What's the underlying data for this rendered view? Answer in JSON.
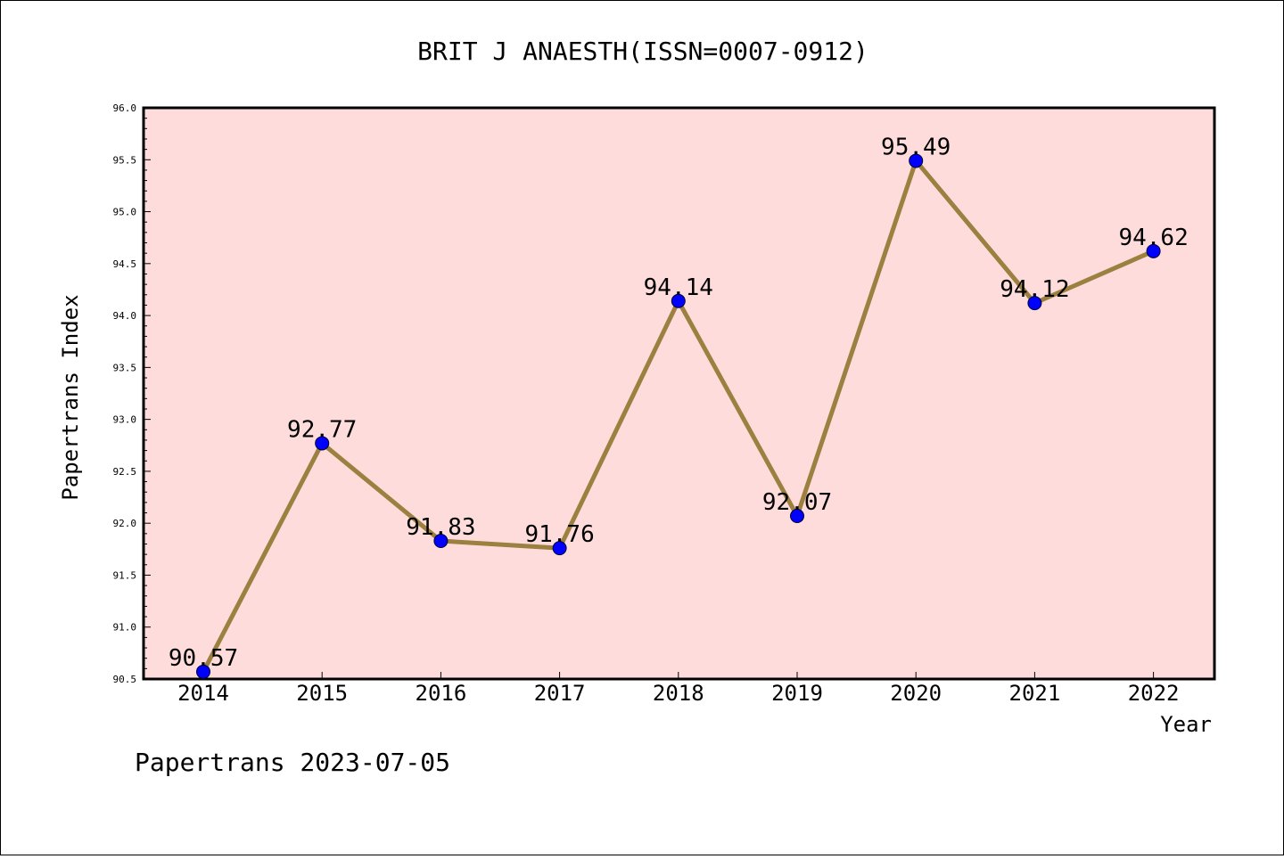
{
  "chart_data": {
    "type": "line",
    "title": "BRIT J ANAESTH(ISSN=0007-0912)",
    "xlabel": "Year",
    "ylabel": "Papertrans Index",
    "ylim": [
      90.5,
      96.0
    ],
    "ytick_step": 0.5,
    "yticks": [
      "90.5",
      "91.0",
      "91.5",
      "92.0",
      "92.5",
      "93.0",
      "93.5",
      "94.0",
      "94.5",
      "95.0",
      "95.5",
      "96.0"
    ],
    "categories": [
      "2014",
      "2015",
      "2016",
      "2017",
      "2018",
      "2019",
      "2020",
      "2021",
      "2022"
    ],
    "values": [
      90.57,
      92.77,
      91.83,
      91.76,
      94.14,
      92.07,
      95.49,
      94.12,
      94.62
    ],
    "data_labels": [
      "90.57",
      "92.77",
      "91.83",
      "91.76",
      "94.14",
      "92.07",
      "95.49",
      "94.12",
      "94.62"
    ],
    "grid": false,
    "colors": {
      "plot_background": "#ffdcdc",
      "line": "#9b8040",
      "marker": "#0000ff"
    }
  },
  "footer": "Papertrans 2023-07-05"
}
